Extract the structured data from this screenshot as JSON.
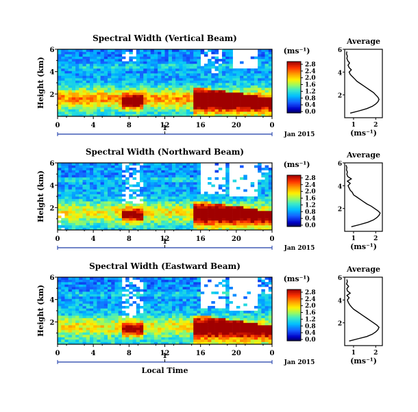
{
  "chart_data": {
    "type": "heatmap",
    "shared": {
      "colorbar_ticks": [
        "0.0",
        "0.4",
        "0.8",
        "1.2",
        "1.6",
        "2.0",
        "2.4",
        "2.8"
      ],
      "colorbar_unit": "(ms⁻¹)",
      "y_ticks": [
        "2",
        "4",
        "6"
      ],
      "x_ticks": [
        "0",
        "4",
        "8",
        "12",
        "16",
        "20",
        "0"
      ],
      "day_tick": "1",
      "date_label": "Jan 2015",
      "xlabel": "Local Time",
      "ylabel": "Height (km)",
      "ylim_km": [
        0,
        6
      ],
      "xlim_hours": [
        0,
        24
      ],
      "colorbar_range": [
        0,
        3.0
      ],
      "average_title": "Average",
      "average_xticks": [
        "1",
        "2"
      ],
      "average_xlabel": "(ms⁻¹)",
      "average_yticks": [
        "2",
        "4",
        "6"
      ]
    },
    "panels": [
      {
        "title": "Spectral Width (Vertical Beam)",
        "profile": {
          "height_km": [
            0.4,
            0.6,
            0.8,
            1.0,
            1.2,
            1.4,
            1.6,
            1.8,
            2.0,
            2.2,
            2.4,
            2.6,
            2.8,
            3.0,
            3.2,
            3.4,
            3.6,
            3.8,
            4.0,
            4.2,
            4.4,
            4.6,
            4.8,
            5.0,
            5.2,
            5.4,
            5.6,
            5.8
          ],
          "width": [
            0.85,
            1.25,
            1.6,
            1.85,
            2.0,
            2.1,
            2.15,
            2.1,
            2.0,
            1.9,
            1.75,
            1.6,
            1.45,
            1.3,
            1.15,
            1.05,
            0.95,
            0.85,
            0.8,
            0.9,
            0.8,
            0.75,
            0.82,
            0.74,
            0.7,
            0.72,
            0.68,
            0.7
          ]
        }
      },
      {
        "title": "Spectral Width (Northward Beam)",
        "profile": {
          "height_km": [
            0.4,
            0.6,
            0.8,
            1.0,
            1.2,
            1.4,
            1.6,
            1.8,
            2.0,
            2.2,
            2.4,
            2.6,
            2.8,
            3.0,
            3.2,
            3.4,
            3.6,
            3.8,
            4.0,
            4.2,
            4.4,
            4.6,
            4.8,
            5.0,
            5.2,
            5.4,
            5.6,
            5.8
          ],
          "width": [
            0.9,
            1.3,
            1.65,
            1.9,
            2.05,
            2.15,
            2.2,
            2.1,
            1.95,
            1.8,
            1.6,
            1.45,
            1.3,
            1.15,
            1.0,
            0.95,
            0.85,
            0.8,
            0.75,
            0.85,
            0.72,
            0.9,
            0.74,
            0.7,
            0.72,
            0.68,
            0.7,
            0.66
          ]
        }
      },
      {
        "title": "Spectral Width (Eastward Beam)",
        "profile": {
          "height_km": [
            0.4,
            0.6,
            0.8,
            1.0,
            1.2,
            1.4,
            1.6,
            1.8,
            2.0,
            2.2,
            2.4,
            2.6,
            2.8,
            3.0,
            3.2,
            3.4,
            3.6,
            3.8,
            4.0,
            4.2,
            4.4,
            4.6,
            4.8,
            5.0,
            5.2,
            5.4,
            5.6,
            5.8
          ],
          "width": [
            0.8,
            1.2,
            1.6,
            1.85,
            2.0,
            2.1,
            2.15,
            2.05,
            1.9,
            1.75,
            1.6,
            1.45,
            1.3,
            1.15,
            1.0,
            0.9,
            0.82,
            0.76,
            0.72,
            0.8,
            0.7,
            0.85,
            0.72,
            0.7,
            0.78,
            0.68,
            0.72,
            0.7
          ]
        }
      }
    ]
  }
}
